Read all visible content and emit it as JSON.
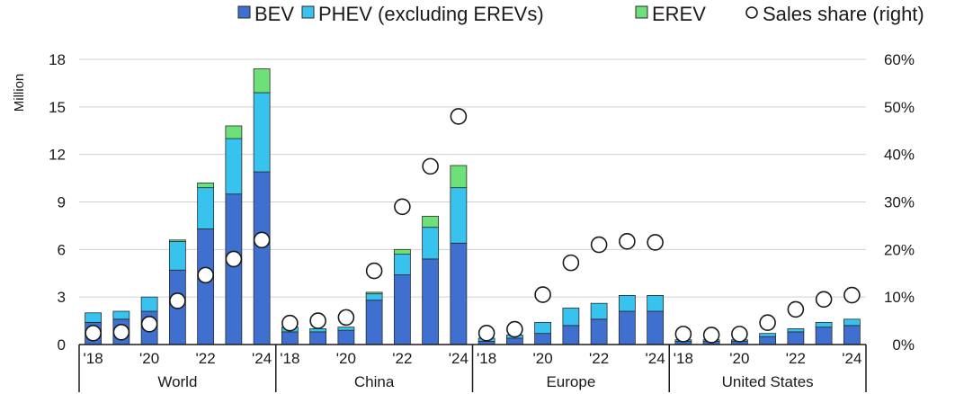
{
  "chart_data": {
    "type": "bar",
    "stacked": true,
    "ylabel": "Million",
    "ylim": [
      0,
      18
    ],
    "yticks": [
      "0",
      "3",
      "6",
      "9",
      "12",
      "15",
      "18"
    ],
    "y2lim": [
      0,
      60
    ],
    "y2ticks": [
      "0%",
      "10%",
      "20%",
      "30%",
      "40%",
      "50%",
      "60%"
    ],
    "legend": [
      "BEV",
      "PHEV (excluding EREVs)",
      "EREV",
      "Sales share (right)"
    ],
    "legend_position": "top",
    "colors": {
      "BEV": "#3f6fcf",
      "PHEV (excluding EREVs)": "#38c2ee",
      "EREV": "#6ee07a",
      "share": "#ffffff"
    },
    "groups": [
      {
        "name": "World",
        "years": [
          "2018",
          "2019",
          "2020",
          "2021",
          "2022",
          "2023",
          "2024"
        ],
        "tick_labels": [
          "'18",
          "",
          "'20",
          "",
          "'22",
          "",
          "'24"
        ],
        "BEV": [
          1.4,
          1.6,
          2.1,
          4.7,
          7.3,
          9.5,
          10.9
        ],
        "PHEV": [
          0.6,
          0.5,
          0.9,
          1.8,
          2.6,
          3.5,
          5.0
        ],
        "EREV": [
          0.0,
          0.0,
          0.0,
          0.1,
          0.3,
          0.8,
          1.5
        ],
        "share": [
          2.4,
          2.6,
          4.3,
          9.2,
          14.6,
          18.0,
          22.0
        ]
      },
      {
        "name": "China",
        "years": [
          "2018",
          "2019",
          "2020",
          "2021",
          "2022",
          "2023",
          "2024"
        ],
        "tick_labels": [
          "'18",
          "",
          "'20",
          "",
          "'22",
          "",
          "'24"
        ],
        "BEV": [
          0.8,
          0.8,
          0.9,
          2.8,
          4.4,
          5.4,
          6.4
        ],
        "PHEV": [
          0.3,
          0.2,
          0.2,
          0.4,
          1.3,
          2.0,
          3.5
        ],
        "EREV": [
          0.0,
          0.0,
          0.0,
          0.1,
          0.3,
          0.7,
          1.4
        ],
        "share": [
          4.5,
          5.0,
          5.7,
          15.5,
          29.0,
          37.5,
          48.0
        ]
      },
      {
        "name": "Europe",
        "years": [
          "2018",
          "2019",
          "2020",
          "2021",
          "2022",
          "2023",
          "2024"
        ],
        "tick_labels": [
          "'18",
          "",
          "'20",
          "",
          "'22",
          "",
          "'24"
        ],
        "BEV": [
          0.2,
          0.4,
          0.7,
          1.2,
          1.6,
          2.1,
          2.1
        ],
        "PHEV": [
          0.2,
          0.2,
          0.7,
          1.1,
          1.0,
          1.0,
          1.0
        ],
        "EREV": [
          0.0,
          0.0,
          0.0,
          0.0,
          0.0,
          0.0,
          0.0
        ],
        "share": [
          2.4,
          3.2,
          10.5,
          17.2,
          21.0,
          21.7,
          21.5
        ]
      },
      {
        "name": "United States",
        "years": [
          "2018",
          "2019",
          "2020",
          "2021",
          "2022",
          "2023",
          "2024"
        ],
        "tick_labels": [
          "'18",
          "",
          "'20",
          "",
          "'22",
          "",
          "'24"
        ],
        "BEV": [
          0.2,
          0.2,
          0.2,
          0.5,
          0.8,
          1.1,
          1.2
        ],
        "PHEV": [
          0.1,
          0.1,
          0.1,
          0.2,
          0.2,
          0.3,
          0.4
        ],
        "EREV": [
          0.0,
          0.0,
          0.0,
          0.0,
          0.0,
          0.0,
          0.0
        ],
        "share": [
          2.2,
          2.0,
          2.2,
          4.6,
          7.4,
          9.5,
          10.4
        ]
      }
    ]
  }
}
